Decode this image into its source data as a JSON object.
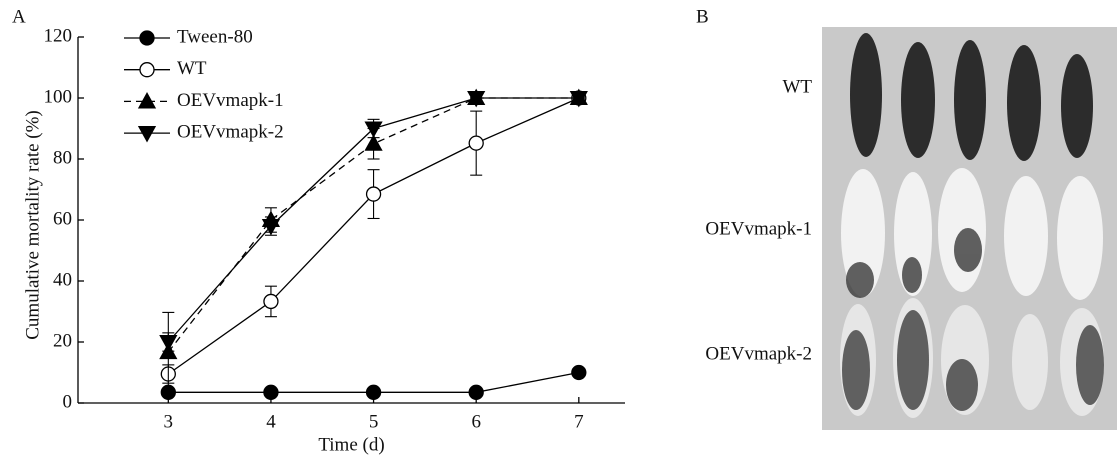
{
  "chart_data": {
    "type": "line",
    "panel_label": "A",
    "x_label": "Time (d)",
    "y_label": "Cumulative mortality rate (%)",
    "x": [
      3,
      4,
      5,
      6,
      7
    ],
    "xlim": [
      2.12,
      7.45
    ],
    "xticks": [
      3,
      4,
      5,
      6,
      7
    ],
    "ylim": [
      0,
      120
    ],
    "yticks": [
      0,
      20,
      40,
      60,
      80,
      100,
      120
    ],
    "series": [
      {
        "name": "Tween-80",
        "color": "#000000",
        "marker": "filled-circle",
        "line_style": "solid",
        "values": [
          3.5,
          3.5,
          3.5,
          3.5,
          10
        ],
        "errors": [
          0,
          0,
          0,
          0,
          0
        ]
      },
      {
        "name": "WT",
        "color": "#000000",
        "marker": "open-circle",
        "line_style": "solid",
        "values": [
          9.5,
          33.3,
          68.5,
          85.2,
          100
        ],
        "errors": [
          3,
          5,
          8,
          10.5,
          0
        ]
      },
      {
        "name": "OEVvmapk-1",
        "color": "#000000",
        "marker": "triangle-up",
        "line_style": "dashed",
        "values": [
          16.7,
          60,
          85,
          100,
          100
        ],
        "errors": [
          13,
          4,
          5,
          0,
          0
        ]
      },
      {
        "name": "OEVvmapk-2",
        "color": "#000000",
        "marker": "triangle-down",
        "line_style": "solid",
        "values": [
          20,
          58,
          90,
          100,
          100
        ],
        "errors": [
          3,
          3,
          3,
          0,
          0
        ]
      }
    ]
  },
  "panel_b": {
    "label": "B",
    "rows": [
      "WT",
      "OEVvmapk-1",
      "OEVvmapk-2"
    ]
  }
}
